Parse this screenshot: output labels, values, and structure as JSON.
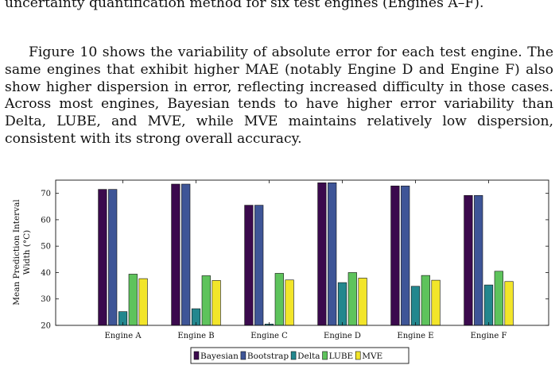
{
  "text": {
    "line_top": "uncertainty quantification method for six test engines (Engines A–F).",
    "paragraph": "Figure 10 shows the variability of absolute error for each test engine. The same engines that exhibit higher MAE (notably Engine D and Engine F) also show higher dispersion in error, reflecting increased difficulty in those cases. Across most engines, Bayesian tends to have higher error variability than Delta, LUBE, and MVE, while MVE maintains relatively low dispersion, consistent with its strong overall accuracy."
  },
  "chart_data": {
    "type": "bar",
    "ylabel_lines": [
      "Mean Prediction Interval",
      "Width (°C)"
    ],
    "xlabel": "",
    "ylim": [
      20,
      75
    ],
    "yticks": [
      20,
      30,
      40,
      50,
      60,
      70
    ],
    "categories": [
      "Engine A",
      "Engine B",
      "Engine C",
      "Engine D",
      "Engine E",
      "Engine F"
    ],
    "legend_position": "bottom-center",
    "series": [
      {
        "name": "Bayesian",
        "color": "#3b0a4d",
        "values": [
          71.5,
          73.5,
          65.5,
          74.0,
          72.8,
          69.2
        ]
      },
      {
        "name": "Bootstrap",
        "color": "#3e5597",
        "values": [
          71.5,
          73.5,
          65.5,
          74.0,
          72.8,
          69.2
        ]
      },
      {
        "name": "Delta",
        "color": "#23878e",
        "values": [
          25.2,
          26.3,
          20.5,
          36.2,
          34.8,
          35.3
        ]
      },
      {
        "name": "LUBE",
        "color": "#5ec35c",
        "values": [
          39.4,
          38.8,
          39.7,
          40.0,
          38.9,
          40.5
        ]
      },
      {
        "name": "MVE",
        "color": "#f2e52a",
        "values": [
          37.7,
          37.0,
          37.2,
          37.9,
          37.1,
          36.6
        ]
      }
    ]
  }
}
